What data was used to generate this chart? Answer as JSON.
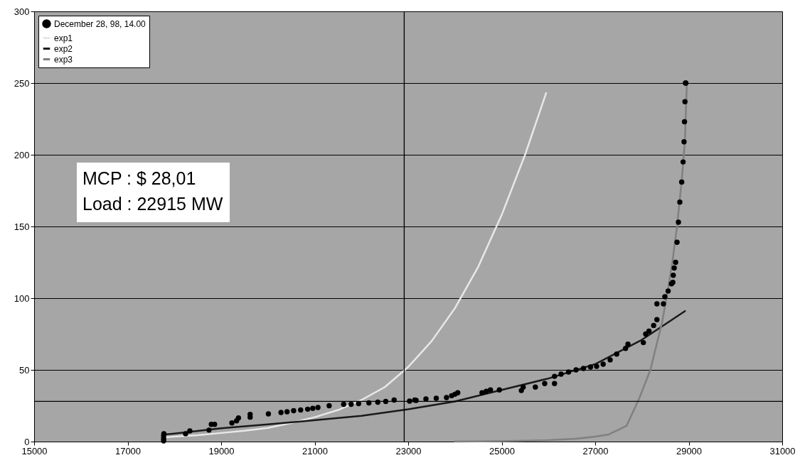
{
  "chart_data": {
    "type": "line",
    "xlim": [
      15000,
      31000
    ],
    "xticks": [
      15000,
      17000,
      19000,
      21000,
      23000,
      25000,
      27000,
      29000,
      31000
    ],
    "ylim": [
      0,
      300
    ],
    "yticks": [
      0,
      50,
      100,
      150,
      200,
      250,
      300
    ],
    "grid": "y",
    "legend": "top left",
    "annotations": [
      "MCP : $ 28,01",
      "Load : 22915 MW"
    ],
    "ref_lines": [
      {
        "axis": "x",
        "value": 22915,
        "color": "#000000"
      },
      {
        "axis": "y",
        "value": 28.01,
        "color": "#000000"
      }
    ],
    "series": [
      {
        "name": "December 28, 98, 14.00",
        "type": "scatter",
        "marker": "circle",
        "color": "#000000",
        "x": [
          17770,
          17770,
          17770,
          17775,
          18240,
          18330,
          18740,
          18790,
          18860,
          19230,
          19330,
          19370,
          19620,
          19620,
          20010,
          20280,
          20410,
          20550,
          20700,
          20850,
          20960,
          21070,
          21310,
          21620,
          21780,
          21940,
          22160,
          22350,
          22520,
          22700,
          23030,
          23140,
          23170,
          23380,
          23600,
          23820,
          23930,
          24000,
          24060,
          24580,
          24670,
          24760,
          24950,
          25420,
          25460,
          25720,
          25920,
          26130,
          26130,
          26270,
          26430,
          26590,
          26750,
          26900,
          27030,
          27170,
          27320,
          27460,
          27650,
          27700,
          28030,
          28080,
          28150,
          28250,
          28320,
          28320,
          28460,
          28490,
          28560,
          28630,
          28660,
          28670,
          28690,
          28720,
          28750,
          28780,
          28810,
          28850,
          28880,
          28900,
          28910,
          28920,
          28930,
          28940
        ],
        "values": [
          0.5,
          2,
          4,
          5.5,
          5.5,
          7.4,
          8,
          12,
          12,
          13,
          14.5,
          16.5,
          17,
          19,
          19.3,
          20.3,
          20.8,
          21.5,
          22,
          22.6,
          23.2,
          23.8,
          25,
          26,
          26,
          26.5,
          27,
          27.5,
          28,
          29,
          28.2,
          29,
          28.7,
          29.7,
          30.2,
          30.7,
          32,
          33,
          34,
          34,
          35,
          36,
          36,
          35.6,
          38,
          38,
          40.5,
          40.5,
          45.5,
          47,
          48.5,
          50,
          51,
          52,
          52.5,
          54,
          57,
          61,
          65,
          68,
          69,
          75,
          77,
          81,
          85,
          96,
          96,
          101,
          105,
          110,
          111,
          116,
          121,
          125,
          139,
          153,
          167,
          181,
          195,
          209,
          223,
          237,
          250,
          250
        ]
      },
      {
        "name": "exp1",
        "color": "#e8e8e8",
        "x": [
          17800,
          18500,
          19000,
          19500,
          20000,
          20500,
          21000,
          21500,
          22000,
          22500,
          23000,
          23500,
          24000,
          24500,
          25000,
          25500,
          25950
        ],
        "values": [
          3,
          4.5,
          6,
          7.5,
          9.5,
          13,
          17,
          22,
          29,
          38,
          52,
          70,
          93,
          122,
          158,
          200,
          243
        ]
      },
      {
        "name": "exp2",
        "color": "#1a1a1a",
        "x": [
          17800,
          18000,
          19000,
          20000,
          20860,
          22000,
          23000,
          24000,
          25000,
          26000,
          27000,
          28000,
          28920
        ],
        "values": [
          5,
          5.6,
          9.3,
          12,
          14.5,
          18,
          22.5,
          28,
          36,
          44,
          54,
          71,
          91
        ]
      },
      {
        "name": "exp3",
        "color": "#808080",
        "x": [
          24000,
          25000,
          26000,
          26590,
          27000,
          27290,
          27670,
          27940,
          28180,
          28430,
          28550,
          28650,
          28750,
          28850,
          28920,
          28960
        ],
        "values": [
          0,
          0.3,
          1,
          2,
          3.5,
          5,
          11,
          30,
          50,
          83,
          105,
          125,
          150,
          182,
          210,
          250
        ]
      }
    ]
  }
}
